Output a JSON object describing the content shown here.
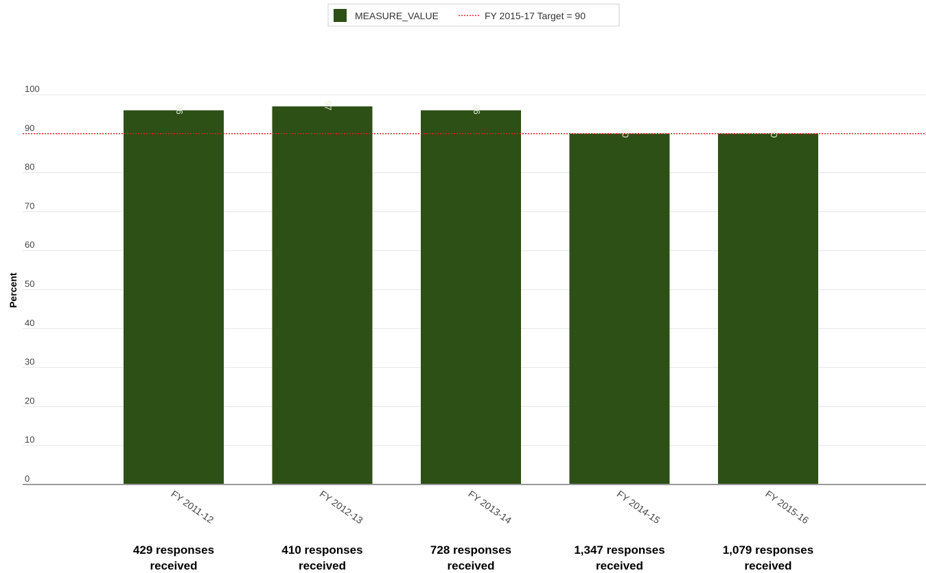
{
  "chart_data": {
    "type": "bar",
    "categories": [
      "FY 2011-12",
      "FY 2012-13",
      "FY 2013-14",
      "FY 2014-15",
      "FY 2015-16"
    ],
    "series": [
      {
        "name": "MEASURE_VALUE",
        "values": [
          96,
          97,
          96,
          90,
          90
        ]
      }
    ],
    "value_labels": [
      "96",
      "97",
      "96",
      "90",
      "90"
    ],
    "target": {
      "name": "FY 2015-17 Target = 90",
      "value": 90
    },
    "ylabel": "Percent",
    "xlabel": "",
    "ylim": [
      0,
      100
    ],
    "yticks": [
      0,
      10,
      20,
      30,
      40,
      50,
      60,
      70,
      80,
      90,
      100
    ],
    "grid": true,
    "legend_position": "top-center",
    "colors": {
      "bar": "#2d5016",
      "target_line": "#e02020",
      "grid": "#e5e5e5"
    }
  },
  "responses": [
    {
      "line1": "429 responses",
      "line2": "received"
    },
    {
      "line1": "410 responses",
      "line2": "received"
    },
    {
      "line1": "728 responses",
      "line2": "received"
    },
    {
      "line1": "1,347 responses",
      "line2": "received"
    },
    {
      "line1": "1,079 responses",
      "line2": "received"
    }
  ]
}
